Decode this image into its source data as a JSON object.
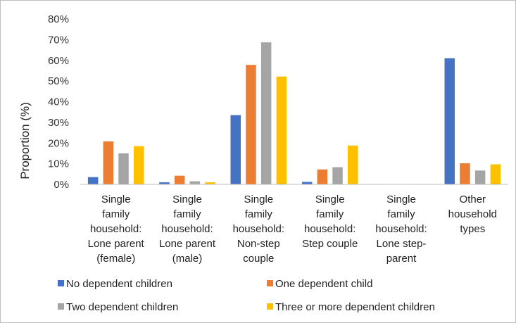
{
  "chart_data": {
    "type": "bar",
    "title": "",
    "xlabel": "",
    "ylabel": "Proportion (%)",
    "ylim": [
      0,
      80
    ],
    "yticks": [
      "0%",
      "10%",
      "20%",
      "30%",
      "40%",
      "50%",
      "60%",
      "70%",
      "80%"
    ],
    "grid": false,
    "legend_position": "bottom",
    "categories": [
      [
        "Single",
        "family",
        "household:",
        "Lone parent",
        "(female)"
      ],
      [
        "Single",
        "family",
        "household:",
        "Lone parent",
        "(male)"
      ],
      [
        "Single",
        "family",
        "household:",
        "Non-step",
        "couple"
      ],
      [
        "Single",
        "family",
        "household:",
        "Step couple"
      ],
      [
        "Single",
        "family",
        "household:",
        "Lone step-",
        "parent"
      ],
      [
        "Other",
        "household",
        "types"
      ]
    ],
    "series": [
      {
        "name": "No dependent children",
        "color": "#4472C4",
        "values": [
          3.5,
          1,
          33.5,
          1.2,
          0,
          61
        ]
      },
      {
        "name": "One dependent child",
        "color": "#ED7D31",
        "values": [
          20.8,
          4.2,
          57.8,
          7.2,
          0,
          10.2
        ]
      },
      {
        "name": "Two dependent children",
        "color": "#A5A5A5",
        "values": [
          15,
          1.5,
          68.7,
          8.3,
          0,
          6.7
        ]
      },
      {
        "name": "Three or more dependent children",
        "color": "#FFC000",
        "values": [
          18.5,
          1,
          52.2,
          18.8,
          0,
          9.7
        ]
      }
    ]
  }
}
